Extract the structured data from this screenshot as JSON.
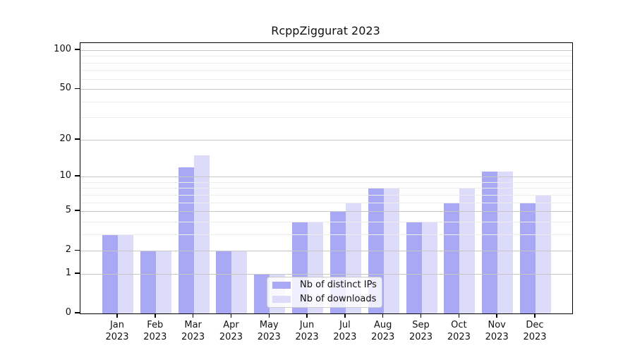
{
  "title": "RcppZiggurat 2023",
  "legend": {
    "items": [
      {
        "label": "Nb of distinct IPs",
        "color": "#a8a8f4"
      },
      {
        "label": "Nb of downloads",
        "color": "#dcdcfa"
      }
    ]
  },
  "chart_data": {
    "type": "bar",
    "title": "RcppZiggurat 2023",
    "yscale": "log1p",
    "grid": "on",
    "legend_position": "lower center inside plot",
    "categories": [
      "Jan",
      "Feb",
      "Mar",
      "Apr",
      "May",
      "Jun",
      "Jul",
      "Aug",
      "Sep",
      "Oct",
      "Nov",
      "Dec"
    ],
    "category_year": "2023",
    "series": [
      {
        "name": "Nb of distinct IPs",
        "color": "#a8a8f4",
        "values": [
          3,
          2,
          12,
          2,
          1,
          4,
          5,
          8,
          4,
          6,
          11,
          6
        ]
      },
      {
        "name": "Nb of downloads",
        "color": "#dcdcfa",
        "values": [
          3,
          2,
          15,
          2,
          1,
          4,
          6,
          8,
          4,
          8,
          11,
          7
        ]
      }
    ],
    "yaxis": {
      "ticks": [
        0,
        1,
        2,
        5,
        10,
        20,
        50,
        100
      ],
      "minor_ticks": [
        3,
        4,
        6,
        7,
        8,
        9,
        30,
        40,
        60,
        70,
        80,
        90
      ],
      "max": 100
    }
  }
}
